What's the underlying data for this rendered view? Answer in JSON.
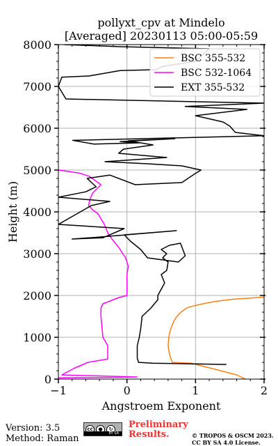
{
  "chart_data": {
    "type": "line",
    "title": "pollyxt_cpv at Mindelo",
    "subtitle": "[Averaged] 20230113 05:00-05:59",
    "xlabel": "Angstroem Exponent",
    "ylabel": "Height (m)",
    "xlim": [
      -1,
      2
    ],
    "ylim": [
      0,
      8000
    ],
    "xticks": [
      "−1",
      "0",
      "1",
      "2"
    ],
    "yticks": [
      "0",
      "1000",
      "2000",
      "3000",
      "4000",
      "5000",
      "6000",
      "7000",
      "8000"
    ],
    "grid": true,
    "legend_position": "top-right",
    "series": [
      {
        "name": "BSC 355-532",
        "color": "#ff7f0e",
        "x": [
          1.73,
          1.6,
          1.25,
          0.98,
          0.94,
          0.66,
          0.62,
          0.6,
          0.61,
          0.63,
          0.66,
          0.69,
          0.72,
          0.75,
          0.78,
          0.82,
          0.86,
          0.92,
          1.1,
          1.3,
          1.55,
          2.0
        ],
        "y": [
          0,
          100,
          250,
          360,
          380,
          400,
          600,
          800,
          1000,
          1150,
          1300,
          1400,
          1480,
          1540,
          1590,
          1640,
          1690,
          1730,
          1800,
          1860,
          1910,
          1960
        ]
      },
      {
        "name": "BSC 532-1064",
        "color": "#ff00ff",
        "x": [
          -1.0,
          0.15,
          -0.95,
          -0.78,
          -0.57,
          -0.28,
          -0.28,
          -0.35,
          -0.38,
          -0.38,
          -0.35,
          -0.12,
          0.0,
          0.0,
          0.0,
          0.02,
          -0.02,
          -0.12,
          -0.22,
          -0.28,
          -0.33,
          -0.42,
          -0.5,
          -0.56,
          -0.54,
          -0.5,
          -0.38,
          -0.55,
          -0.7,
          -1.0
        ],
        "y": [
          30,
          50,
          100,
          250,
          400,
          480,
          800,
          1000,
          1500,
          1700,
          1800,
          1950,
          2000,
          2250,
          2500,
          2700,
          2900,
          3150,
          3350,
          3500,
          3700,
          3950,
          4050,
          4150,
          4300,
          4450,
          4650,
          4850,
          4930,
          5000
        ]
      },
      {
        "name": "EXT 355-532",
        "color": "#000000",
        "x": [
          1.45,
          0.38,
          0.17,
          0.15,
          0.15,
          0.18,
          0.2,
          0.22,
          0.35,
          0.45,
          0.45,
          0.55,
          0.5,
          0.58,
          0.6,
          0.52,
          0.58,
          0.5,
          0.62,
          0.78,
          0.85,
          0.75,
          0.3,
          0.2,
          0.05,
          -0.04,
          0.72,
          -0.38,
          -0.8,
          -0.35,
          -0.04,
          -1.0,
          -0.52,
          -0.25,
          -1.0,
          -0.6,
          -0.45,
          -0.58,
          -0.25,
          0.12,
          0.8,
          0.98,
          1.08,
          0.8,
          0.3,
          -0.32,
          0.58,
          -0.12,
          -0.05,
          0.38,
          0.02,
          0.7,
          -0.1,
          0.18,
          -0.48,
          -0.79,
          2.0,
          1.58,
          1.5,
          1.4,
          1.0,
          1.75,
          0.85,
          2.0,
          -0.89,
          -1.0,
          -0.95,
          -0.55,
          -0.1,
          0.42,
          0.52,
          1.0,
          1.2,
          -0.1,
          -0.92
        ],
        "y": [
          350,
          380,
          400,
          500,
          800,
          1000,
          1200,
          1500,
          1700,
          1900,
          2000,
          2300,
          2500,
          2600,
          2800,
          2900,
          3000,
          3100,
          3200,
          3250,
          2950,
          2800,
          2900,
          3100,
          3300,
          3450,
          3550,
          3400,
          3350,
          3380,
          3600,
          3700,
          4150,
          4250,
          4350,
          4480,
          4600,
          4800,
          4880,
          4650,
          4700,
          4900,
          5000,
          5100,
          5150,
          5200,
          5300,
          5400,
          5500,
          5600,
          5700,
          5750,
          5680,
          5650,
          5620,
          5710,
          5820,
          5900,
          6050,
          6150,
          6300,
          6450,
          6520,
          6600,
          6700,
          7000,
          7220,
          7250,
          7380,
          7400,
          7480,
          7600,
          7900,
          7950,
          8000
        ]
      }
    ]
  },
  "footer": {
    "version": "Version: 3.5",
    "method": "Method: Raman",
    "badge_icons": [
      "cc-icon",
      "by-icon",
      "sa-icon"
    ],
    "badge_strip": "BY SA",
    "preliminary_line1": "Preliminary",
    "preliminary_line2": "Results.",
    "copyright_line1": "© TROPOS & OSCM 2023.",
    "copyright_line2": "CC BY SA 4.0 License."
  }
}
